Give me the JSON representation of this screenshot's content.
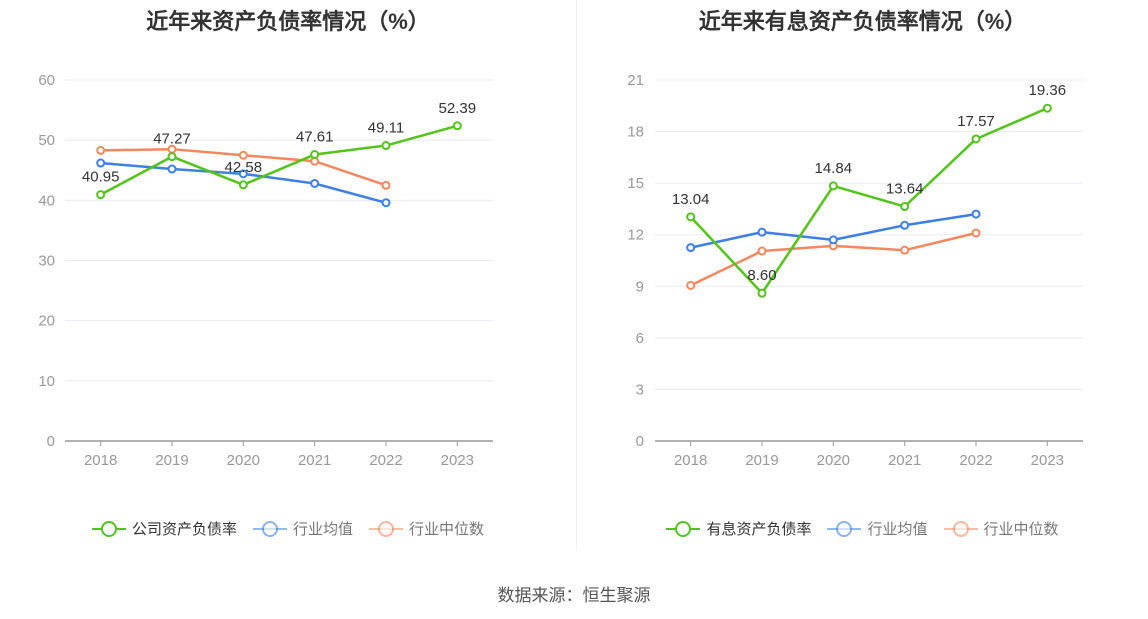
{
  "charts": [
    {
      "id": "left",
      "title": "近年来资产负债率情况（%）",
      "legend": [
        "公司资产负债率",
        "行业均值",
        "行业中位数"
      ],
      "chart_data": {
        "type": "line",
        "title": "近年来资产负债率情况（%）",
        "categories": [
          "2018",
          "2019",
          "2020",
          "2021",
          "2022",
          "2023"
        ],
        "ylim": [
          0,
          60
        ],
        "yticks": [
          0,
          10,
          20,
          30,
          40,
          50,
          60
        ],
        "grid": true,
        "legend_position": "bottom",
        "series": [
          {
            "name": "公司资产负债率",
            "color": "#52c41a",
            "values": [
              40.95,
              47.27,
              42.58,
              47.61,
              49.11,
              52.39
            ],
            "labels": [
              "40.95",
              "47.27",
              "42.58",
              "47.61",
              "49.11",
              "52.39"
            ],
            "label_pos": [
              "above",
              "above",
              "above",
              "above",
              "above",
              "above"
            ]
          },
          {
            "name": "行业均值",
            "color": "#3d7fe6",
            "values": [
              46.2,
              45.2,
              44.4,
              42.8,
              39.6,
              null
            ]
          },
          {
            "name": "行业中位数",
            "color": "#f4875e",
            "values": [
              48.3,
              48.5,
              47.5,
              46.5,
              42.5,
              null
            ]
          }
        ]
      }
    },
    {
      "id": "right",
      "title": "近年来有息资产负债率情况（%）",
      "legend": [
        "有息资产负债率",
        "行业均值",
        "行业中位数"
      ],
      "chart_data": {
        "type": "line",
        "title": "近年来有息资产负债率情况（%）",
        "categories": [
          "2018",
          "2019",
          "2020",
          "2021",
          "2022",
          "2023"
        ],
        "ylim": [
          0,
          21
        ],
        "yticks": [
          0,
          3,
          6,
          9,
          12,
          15,
          18,
          21
        ],
        "grid": true,
        "legend_position": "bottom",
        "series": [
          {
            "name": "有息资产负债率",
            "color": "#52c41a",
            "values": [
              13.04,
              8.6,
              14.84,
              13.64,
              17.57,
              19.36
            ],
            "labels": [
              "13.04",
              "8.60",
              "14.84",
              "13.64",
              "17.57",
              "19.36"
            ],
            "label_pos": [
              "above",
              "above",
              "above",
              "above",
              "above",
              "above"
            ]
          },
          {
            "name": "行业均值",
            "color": "#3d7fe6",
            "values": [
              11.25,
              12.15,
              11.7,
              12.55,
              13.2,
              null
            ]
          },
          {
            "name": "行业中位数",
            "color": "#f4875e",
            "values": [
              9.05,
              11.05,
              11.35,
              11.1,
              12.1,
              null
            ]
          }
        ]
      }
    }
  ],
  "source": "数据来源：恒生聚源"
}
